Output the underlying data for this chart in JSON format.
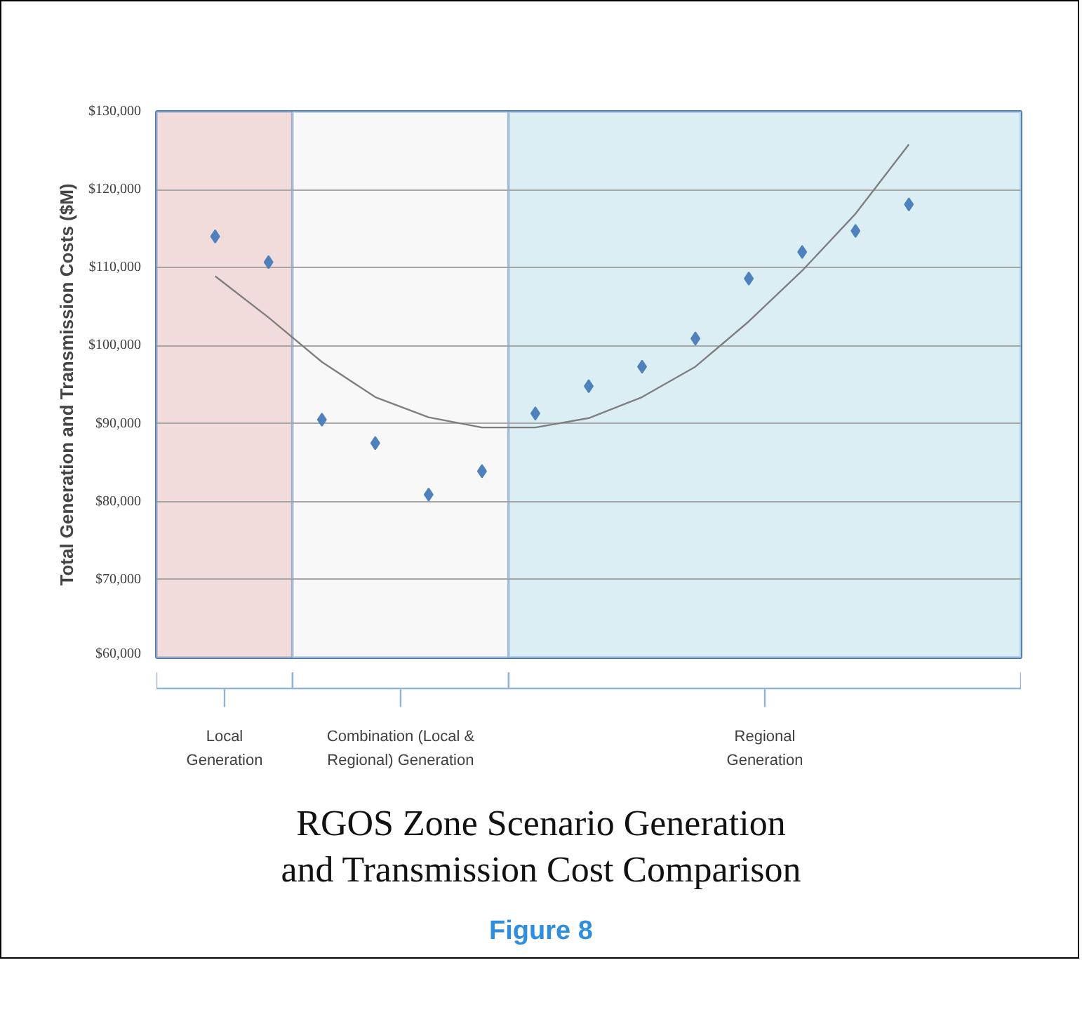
{
  "chart_data": {
    "type": "scatter",
    "title": "RGOS Zone Scenario Generation\nand Transmission Cost Comparison",
    "ylabel": "Total Generation and Transmission Costs ($M)",
    "annotations": [
      "Local\nGeneration",
      "Combination (Local &\nRegional) Generation",
      "Regional\nGeneration",
      "Figure 8"
    ],
    "categories": [
      null,
      null,
      null,
      null,
      null,
      null,
      null,
      null,
      null,
      null,
      null,
      null,
      null,
      null
    ],
    "tick_labels": "y",
    "ylim": [
      60000,
      130000
    ],
    "yticks": [
      {
        "value": 60000,
        "label": "$60,000"
      },
      {
        "value": 70000,
        "label": "$70,000"
      },
      {
        "value": 80000,
        "label": "$80,000"
      },
      {
        "value": 90000,
        "label": "$90,000"
      },
      {
        "value": 100000,
        "label": "$100,000"
      },
      {
        "value": 110000,
        "label": "$110,000"
      },
      {
        "value": 120000,
        "label": "$120,000"
      },
      {
        "value": 130000,
        "label": "$130,000"
      }
    ],
    "grid": "y",
    "marker": "diamond",
    "series": [
      {
        "color": "#4f81bd",
        "values": [
          114000,
          110700,
          90500,
          87500,
          80900,
          83900,
          91300,
          94800,
          97300,
          100900,
          108600,
          112000,
          114700,
          118100
        ]
      },
      {
        "type": "line",
        "color": "#7f7f7f",
        "marker": "none",
        "values": [
          108900,
          103600,
          97900,
          93400,
          90800,
          89500,
          89500,
          90700,
          93400,
          97300,
          103100,
          109600,
          116900,
          125800
        ]
      }
    ]
  }
}
